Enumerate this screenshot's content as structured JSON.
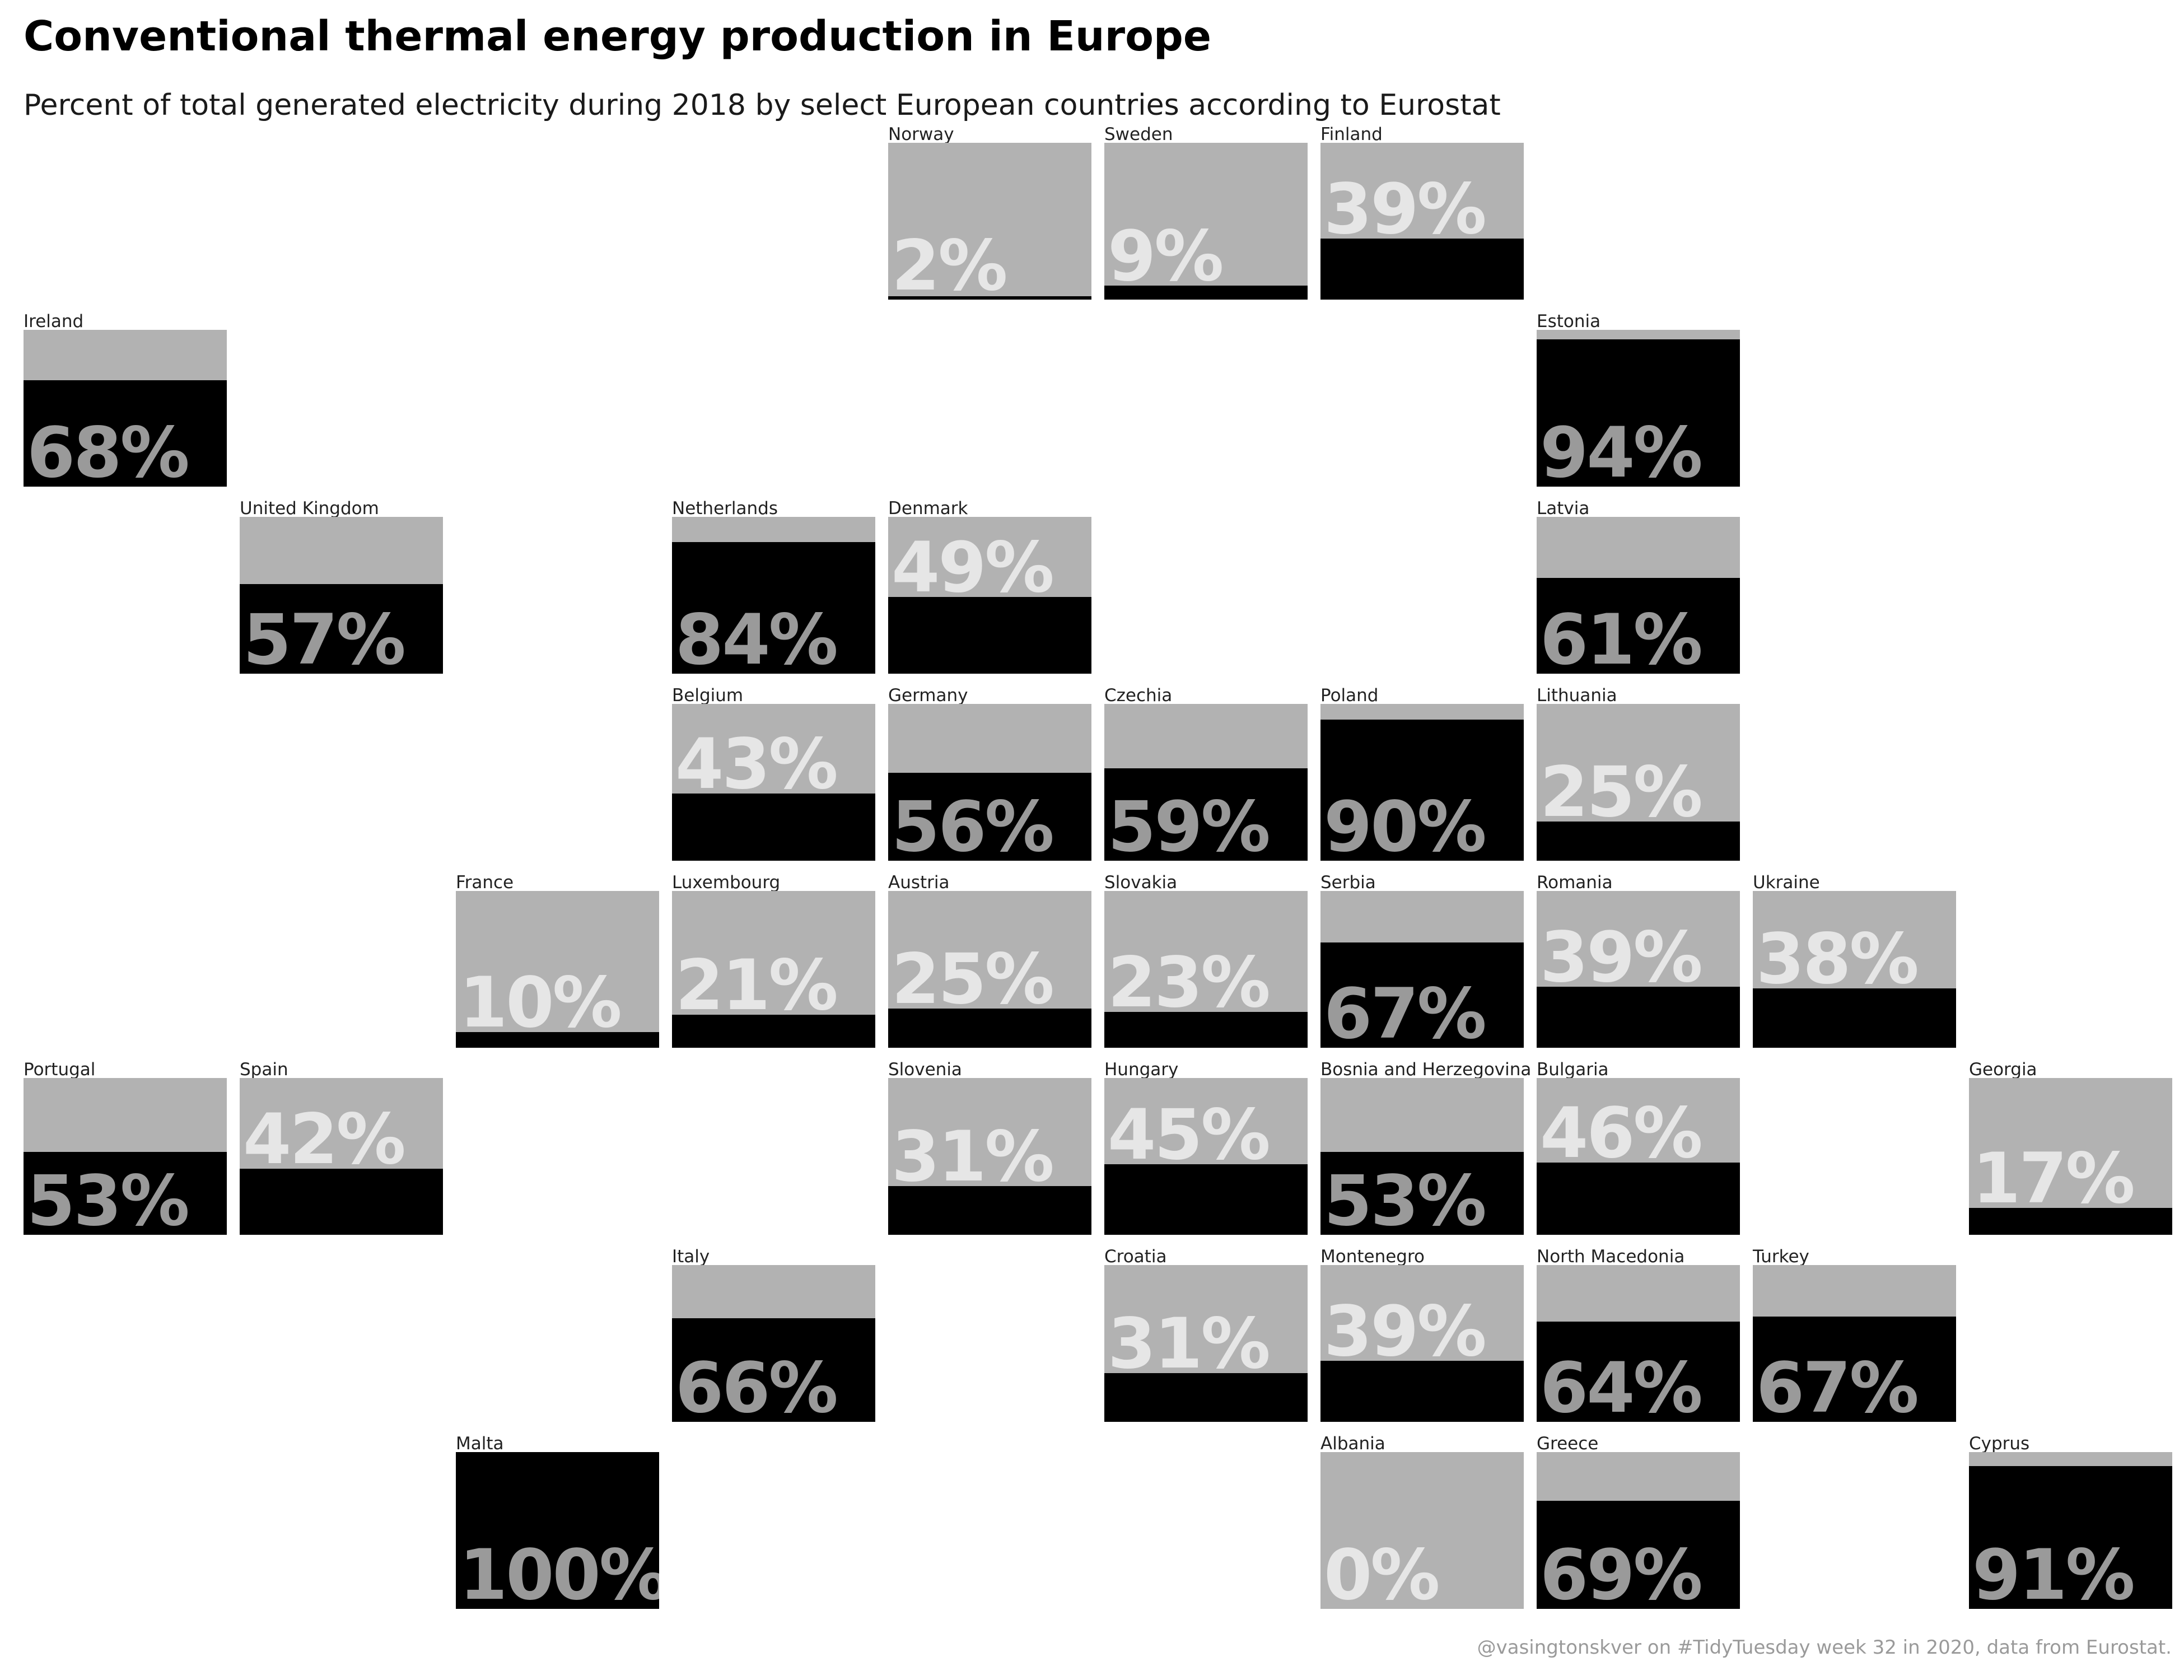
{
  "title": "Conventional thermal energy production in Europe",
  "subtitle": "Percent of total generated electricity during 2018 by select European countries according to Eurostat",
  "caption": "@vasingtonskver on #TidyTuesday week 32 in 2020, data from Eurostat.",
  "colors": {
    "fill": "#000000",
    "remainder": "#b2b2b2",
    "label_on_light": "#e6e6e6",
    "label_on_dark": "#9a9a9a"
  },
  "chart_data": {
    "type": "tile-grid",
    "unit": "%",
    "max": 100,
    "countries": [
      {
        "name": "Norway",
        "value": 2,
        "label": "2%",
        "col": 4,
        "row": 0
      },
      {
        "name": "Sweden",
        "value": 9,
        "label": "9%",
        "col": 5,
        "row": 0
      },
      {
        "name": "Finland",
        "value": 39,
        "label": "39%",
        "col": 6,
        "row": 0
      },
      {
        "name": "Ireland",
        "value": 68,
        "label": "68%",
        "col": 0,
        "row": 1
      },
      {
        "name": "Estonia",
        "value": 94,
        "label": "94%",
        "col": 7,
        "row": 1
      },
      {
        "name": "United Kingdom",
        "value": 57,
        "label": "57%",
        "col": 1,
        "row": 2
      },
      {
        "name": "Netherlands",
        "value": 84,
        "label": "84%",
        "col": 3,
        "row": 2
      },
      {
        "name": "Denmark",
        "value": 49,
        "label": "49%",
        "col": 4,
        "row": 2
      },
      {
        "name": "Latvia",
        "value": 61,
        "label": "61%",
        "col": 7,
        "row": 2
      },
      {
        "name": "Belgium",
        "value": 43,
        "label": "43%",
        "col": 3,
        "row": 3
      },
      {
        "name": "Germany",
        "value": 56,
        "label": "56%",
        "col": 4,
        "row": 3
      },
      {
        "name": "Czechia",
        "value": 59,
        "label": "59%",
        "col": 5,
        "row": 3
      },
      {
        "name": "Poland",
        "value": 90,
        "label": "90%",
        "col": 6,
        "row": 3
      },
      {
        "name": "Lithuania",
        "value": 25,
        "label": "25%",
        "col": 7,
        "row": 3
      },
      {
        "name": "France",
        "value": 10,
        "label": "10%",
        "col": 2,
        "row": 4
      },
      {
        "name": "Luxembourg",
        "value": 21,
        "label": "21%",
        "col": 3,
        "row": 4
      },
      {
        "name": "Austria",
        "value": 25,
        "label": "25%",
        "col": 4,
        "row": 4
      },
      {
        "name": "Slovakia",
        "value": 23,
        "label": "23%",
        "col": 5,
        "row": 4
      },
      {
        "name": "Serbia",
        "value": 67,
        "label": "67%",
        "col": 6,
        "row": 4
      },
      {
        "name": "Romania",
        "value": 39,
        "label": "39%",
        "col": 7,
        "row": 4
      },
      {
        "name": "Ukraine",
        "value": 38,
        "label": "38%",
        "col": 8,
        "row": 4
      },
      {
        "name": "Portugal",
        "value": 53,
        "label": "53%",
        "col": 0,
        "row": 5
      },
      {
        "name": "Spain",
        "value": 42,
        "label": "42%",
        "col": 1,
        "row": 5
      },
      {
        "name": "Slovenia",
        "value": 31,
        "label": "31%",
        "col": 4,
        "row": 5
      },
      {
        "name": "Hungary",
        "value": 45,
        "label": "45%",
        "col": 5,
        "row": 5
      },
      {
        "name": "Bosnia and Herzegovina",
        "value": 53,
        "label": "53%",
        "col": 6,
        "row": 5
      },
      {
        "name": "Bulgaria",
        "value": 46,
        "label": "46%",
        "col": 7,
        "row": 5
      },
      {
        "name": "Georgia",
        "value": 17,
        "label": "17%",
        "col": 9,
        "row": 5
      },
      {
        "name": "Italy",
        "value": 66,
        "label": "66%",
        "col": 3,
        "row": 6
      },
      {
        "name": "Croatia",
        "value": 31,
        "label": "31%",
        "col": 5,
        "row": 6
      },
      {
        "name": "Montenegro",
        "value": 39,
        "label": "39%",
        "col": 6,
        "row": 6
      },
      {
        "name": "North Macedonia",
        "value": 64,
        "label": "64%",
        "col": 7,
        "row": 6
      },
      {
        "name": "Turkey",
        "value": 67,
        "label": "67%",
        "col": 8,
        "row": 6
      },
      {
        "name": "Malta",
        "value": 100,
        "label": "100%",
        "col": 2,
        "row": 7
      },
      {
        "name": "Albania",
        "value": 0,
        "label": "0%",
        "col": 6,
        "row": 7
      },
      {
        "name": "Greece",
        "value": 69,
        "label": "69%",
        "col": 7,
        "row": 7
      },
      {
        "name": "Cyprus",
        "value": 91,
        "label": "91%",
        "col": 9,
        "row": 7
      }
    ]
  }
}
